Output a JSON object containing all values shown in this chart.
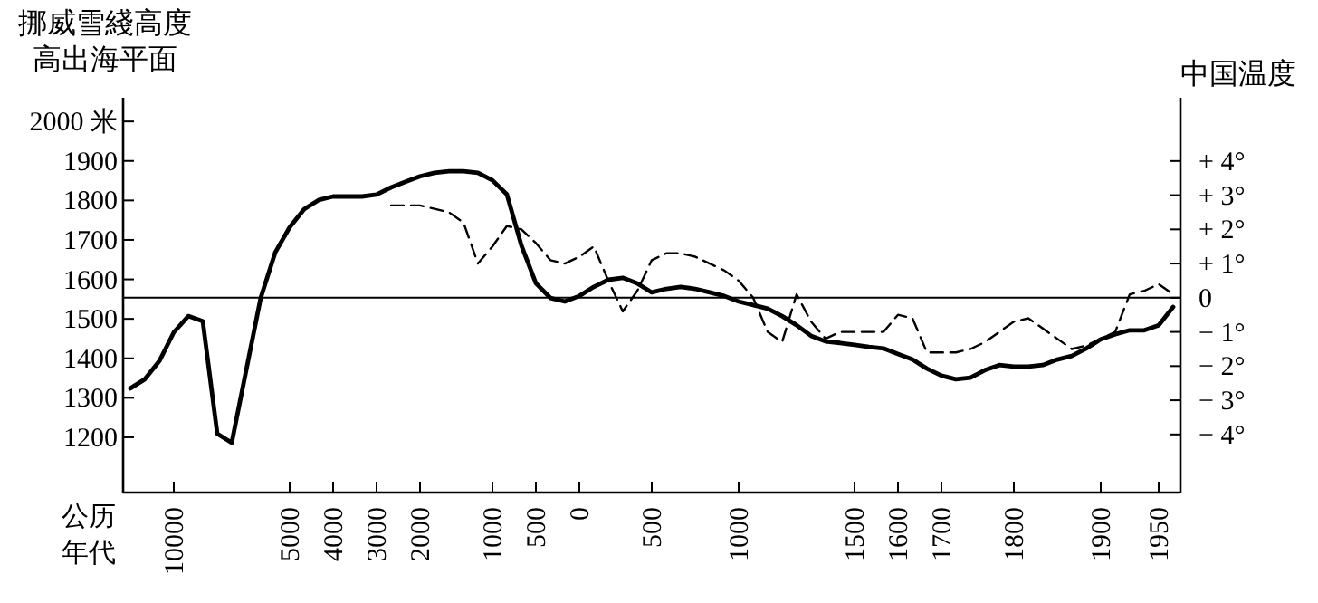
{
  "chart_data": {
    "type": "line",
    "ylabel": "挪威雪綫高度高出海平面",
    "y2label": "中国温度",
    "xlabel": "公历年代",
    "categories": [
      null,
      null,
      null,
      "10000",
      null,
      null,
      null,
      null,
      null,
      null,
      null,
      "5000",
      null,
      null,
      "4000",
      null,
      null,
      "3000",
      null,
      null,
      "2000",
      null,
      null,
      null,
      null,
      "1000",
      null,
      null,
      "500",
      null,
      null,
      "0",
      null,
      null,
      null,
      null,
      "500",
      null,
      null,
      null,
      null,
      null,
      "1000",
      null,
      null,
      null,
      null,
      null,
      null,
      null,
      "1500",
      null,
      null,
      "1600",
      null,
      null,
      "1700",
      null,
      null,
      null,
      null,
      "1800",
      null,
      null,
      null,
      null,
      null,
      "1900",
      null,
      null,
      null,
      "1950",
      null
    ],
    "ylim": [
      1060,
      2060
    ],
    "y2lim": [
      -5.7,
      5.85
    ],
    "yticks": [
      {
        "value": 1200,
        "label": "1200"
      },
      {
        "value": 1300,
        "label": "1300"
      },
      {
        "value": 1400,
        "label": "1400"
      },
      {
        "value": 1500,
        "label": "1500"
      },
      {
        "value": 1600,
        "label": "1600"
      },
      {
        "value": 1700,
        "label": "1700"
      },
      {
        "value": 1800,
        "label": "1800"
      },
      {
        "value": 1900,
        "label": "1900"
      },
      {
        "value": 2000,
        "label": "2000 米"
      }
    ],
    "y2ticks": [
      {
        "value": 4,
        "label": "+ 4°"
      },
      {
        "value": 3,
        "label": "+ 3°"
      },
      {
        "value": 2,
        "label": "+ 2°"
      },
      {
        "value": 1,
        "label": "+ 1°"
      },
      {
        "value": 0,
        "label": "0"
      },
      {
        "value": -1,
        "label": "− 1°"
      },
      {
        "value": -2,
        "label": "− 2°"
      },
      {
        "value": -3,
        "label": "− 3°"
      },
      {
        "value": -4,
        "label": "− 4°"
      }
    ],
    "ref_lines": [
      {
        "axis": "y2",
        "value": 0
      }
    ],
    "series": [
      {
        "color": "#000000",
        "line_style": "solid",
        "values": [
          1324,
          1347,
          1393,
          1466,
          1507,
          1494,
          1209,
          1186,
          1370,
          1553,
          1668,
          1732,
          1778,
          1801,
          1810,
          1810,
          1810,
          1815,
          1833,
          1847,
          1861,
          1870,
          1874,
          1874,
          1870,
          1851,
          1815,
          1686,
          1590,
          1553,
          1544,
          1558,
          1581,
          1599,
          1604,
          1590,
          1567,
          1576,
          1581,
          1576,
          1567,
          1558,
          1544,
          1535,
          1526,
          1507,
          1484,
          1457,
          1443,
          1439,
          1434,
          1429,
          1425,
          1411,
          1397,
          1374,
          1356,
          1347,
          1351,
          1370,
          1383,
          1379,
          1379,
          1383,
          1397,
          1406,
          1425,
          1448,
          1461,
          1471,
          1471,
          1484,
          1530
        ]
      },
      {
        "color": "#000000",
        "line_style": "dashed",
        "axis": "y2",
        "values": [
          null,
          null,
          null,
          null,
          null,
          null,
          null,
          null,
          null,
          null,
          null,
          null,
          null,
          null,
          null,
          null,
          null,
          null,
          2.7,
          2.7,
          2.7,
          2.6,
          2.5,
          2.2,
          1.0,
          1.5,
          2.1,
          2.0,
          1.6,
          1.1,
          1.0,
          1.2,
          1.5,
          0.5,
          -0.4,
          0.2,
          1.1,
          1.3,
          1.3,
          1.2,
          1.0,
          0.8,
          0.5,
          0,
          -1.0,
          -1.3,
          0.1,
          -0.7,
          -1.2,
          -1.0,
          -1.0,
          -1.0,
          -1.0,
          -0.5,
          -0.6,
          -1.6,
          -1.6,
          -1.6,
          -1.5,
          -1.3,
          -1.0,
          -0.7,
          -0.6,
          -0.9,
          -1.2,
          -1.5,
          -1.4,
          -1.2,
          -1.0,
          0.1,
          0.2,
          0.4,
          0.1
        ]
      }
    ]
  }
}
